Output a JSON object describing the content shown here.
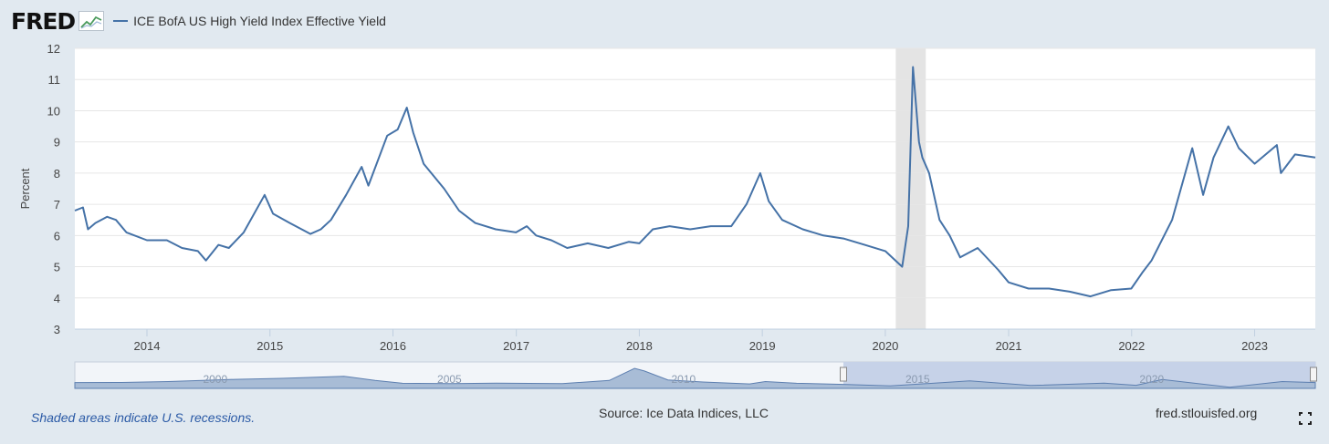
{
  "header": {
    "logo": "FRED",
    "series_label": "ICE BofA US High Yield Index Effective Yield"
  },
  "footer": {
    "recession_note": "Shaded areas indicate U.S. recessions.",
    "source": "Source: Ice Data Indices, LLC",
    "site": "fred.stlouisfed.org"
  },
  "colors": {
    "series": "#4572a7",
    "background": "#e1e9f0",
    "recession": "#e4e4e4",
    "navigator_fill": "#a8bcd6",
    "navigator_selected": "#c6d2e8"
  },
  "icons": {
    "logo_mark": "chart-line-icon",
    "fullscreen": "fullscreen-icon"
  },
  "chart_data": {
    "type": "line",
    "ylabel": "Percent",
    "ylim": [
      3,
      12
    ],
    "yticks": [
      "3",
      "4",
      "5",
      "6",
      "7",
      "8",
      "9",
      "10",
      "11",
      "12"
    ],
    "xlim": [
      "2013-06-01",
      "2023-06-30"
    ],
    "xticks": [
      "2014",
      "2015",
      "2016",
      "2017",
      "2018",
      "2019",
      "2020",
      "2021",
      "2022",
      "2023"
    ],
    "grid": true,
    "legend": "top-left",
    "recessions": [
      {
        "start": "2020-02-01",
        "end": "2020-04-30"
      }
    ],
    "series": [
      {
        "name": "ICE BofA US High Yield Index Effective Yield",
        "color": "#4572a7",
        "points": [
          [
            "2013-06-01",
            6.8
          ],
          [
            "2013-06-25",
            6.9
          ],
          [
            "2013-07-10",
            6.2
          ],
          [
            "2013-08-01",
            6.4
          ],
          [
            "2013-09-05",
            6.6
          ],
          [
            "2013-10-01",
            6.5
          ],
          [
            "2013-11-01",
            6.1
          ],
          [
            "2014-01-01",
            5.85
          ],
          [
            "2014-03-01",
            5.85
          ],
          [
            "2014-04-15",
            5.6
          ],
          [
            "2014-06-01",
            5.5
          ],
          [
            "2014-06-25",
            5.2
          ],
          [
            "2014-08-01",
            5.7
          ],
          [
            "2014-09-01",
            5.6
          ],
          [
            "2014-10-15",
            6.1
          ],
          [
            "2014-12-16",
            7.3
          ],
          [
            "2015-01-10",
            6.7
          ],
          [
            "2015-03-01",
            6.4
          ],
          [
            "2015-05-01",
            6.05
          ],
          [
            "2015-06-01",
            6.2
          ],
          [
            "2015-07-01",
            6.5
          ],
          [
            "2015-08-15",
            7.3
          ],
          [
            "2015-09-30",
            8.2
          ],
          [
            "2015-10-20",
            7.6
          ],
          [
            "2015-12-15",
            9.2
          ],
          [
            "2016-01-15",
            9.4
          ],
          [
            "2016-02-11",
            10.1
          ],
          [
            "2016-03-01",
            9.3
          ],
          [
            "2016-04-01",
            8.3
          ],
          [
            "2016-06-01",
            7.5
          ],
          [
            "2016-07-15",
            6.8
          ],
          [
            "2016-09-01",
            6.4
          ],
          [
            "2016-11-01",
            6.2
          ],
          [
            "2016-12-31",
            6.1
          ],
          [
            "2017-02-01",
            6.3
          ],
          [
            "2017-03-01",
            6.0
          ],
          [
            "2017-04-15",
            5.85
          ],
          [
            "2017-06-01",
            5.6
          ],
          [
            "2017-08-01",
            5.75
          ],
          [
            "2017-10-01",
            5.6
          ],
          [
            "2017-12-01",
            5.8
          ],
          [
            "2018-01-01",
            5.75
          ],
          [
            "2018-02-10",
            6.2
          ],
          [
            "2018-04-01",
            6.3
          ],
          [
            "2018-06-01",
            6.2
          ],
          [
            "2018-08-01",
            6.3
          ],
          [
            "2018-10-01",
            6.3
          ],
          [
            "2018-11-15",
            7.0
          ],
          [
            "2018-12-26",
            8.0
          ],
          [
            "2019-01-20",
            7.1
          ],
          [
            "2019-03-01",
            6.5
          ],
          [
            "2019-05-01",
            6.2
          ],
          [
            "2019-07-01",
            6.0
          ],
          [
            "2019-09-01",
            5.9
          ],
          [
            "2019-11-01",
            5.7
          ],
          [
            "2020-01-01",
            5.5
          ],
          [
            "2020-02-20",
            5.0
          ],
          [
            "2020-03-09",
            6.3
          ],
          [
            "2020-03-23",
            11.4
          ],
          [
            "2020-04-10",
            9.0
          ],
          [
            "2020-04-20",
            8.5
          ],
          [
            "2020-05-10",
            8.0
          ],
          [
            "2020-06-10",
            6.5
          ],
          [
            "2020-07-10",
            6.0
          ],
          [
            "2020-08-10",
            5.3
          ],
          [
            "2020-10-01",
            5.6
          ],
          [
            "2020-12-01",
            4.9
          ],
          [
            "2021-01-01",
            4.5
          ],
          [
            "2021-03-01",
            4.3
          ],
          [
            "2021-05-01",
            4.3
          ],
          [
            "2021-07-01",
            4.2
          ],
          [
            "2021-09-01",
            4.05
          ],
          [
            "2021-11-01",
            4.25
          ],
          [
            "2021-12-31",
            4.3
          ],
          [
            "2022-02-01",
            4.8
          ],
          [
            "2022-03-01",
            5.2
          ],
          [
            "2022-05-01",
            6.5
          ],
          [
            "2022-06-30",
            8.8
          ],
          [
            "2022-08-01",
            7.3
          ],
          [
            "2022-09-01",
            8.5
          ],
          [
            "2022-10-15",
            9.5
          ],
          [
            "2022-11-15",
            8.8
          ],
          [
            "2023-01-01",
            8.3
          ],
          [
            "2023-03-08",
            8.9
          ],
          [
            "2023-03-20",
            8.0
          ],
          [
            "2023-05-01",
            8.6
          ],
          [
            "2023-06-30",
            8.5
          ]
        ]
      }
    ],
    "navigator": {
      "xticks": [
        "2000",
        "2005",
        "2010",
        "2015",
        "2020"
      ],
      "points": [
        [
          "1997-01-01",
          8.5
        ],
        [
          "1998-01-01",
          8.6
        ],
        [
          "1999-01-01",
          9.5
        ],
        [
          "2000-06-01",
          11.5
        ],
        [
          "2001-06-01",
          12.5
        ],
        [
          "2002-10-01",
          14.5
        ],
        [
          "2003-06-01",
          10.5
        ],
        [
          "2004-01-01",
          7.8
        ],
        [
          "2005-01-01",
          7.5
        ],
        [
          "2006-01-01",
          7.9
        ],
        [
          "2007-06-01",
          7.6
        ],
        [
          "2008-06-01",
          10.5
        ],
        [
          "2008-12-15",
          22.0
        ],
        [
          "2009-03-01",
          19.5
        ],
        [
          "2009-09-01",
          11.0
        ],
        [
          "2010-06-01",
          9.0
        ],
        [
          "2011-06-01",
          7.2
        ],
        [
          "2011-10-01",
          9.5
        ],
        [
          "2012-06-01",
          7.8
        ],
        [
          "2013-06-01",
          6.8
        ],
        [
          "2014-06-01",
          5.3
        ],
        [
          "2016-02-11",
          10.1
        ],
        [
          "2017-06-01",
          5.8
        ],
        [
          "2018-12-26",
          8.0
        ],
        [
          "2019-09-01",
          5.9
        ],
        [
          "2020-03-23",
          11.4
        ],
        [
          "2021-09-01",
          4.1
        ],
        [
          "2022-10-15",
          9.5
        ],
        [
          "2023-06-30",
          8.5
        ]
      ]
    }
  }
}
